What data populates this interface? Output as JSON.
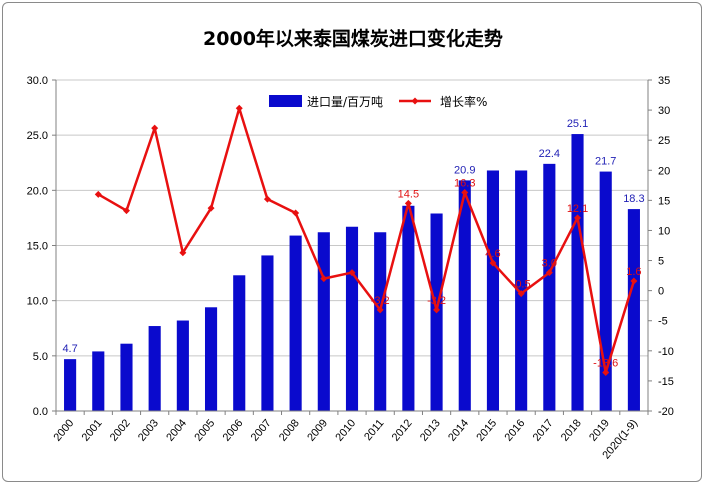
{
  "chart_data": {
    "type": "bar",
    "title": "2000年以来泰国煤炭进口变化走势",
    "categories": [
      "2000",
      "2001",
      "2002",
      "2003",
      "2004",
      "2005",
      "2006",
      "2007",
      "2008",
      "2009",
      "2010",
      "2011",
      "2012",
      "2013",
      "2014",
      "2015",
      "2016",
      "2017",
      "2018",
      "2019",
      "2020(1-9)"
    ],
    "series": [
      {
        "name": "进口量/百万吨",
        "type": "bar",
        "axis": "left",
        "color": "#0a0acd",
        "values": [
          4.7,
          5.4,
          6.1,
          7.7,
          8.2,
          9.4,
          12.3,
          14.1,
          15.9,
          16.2,
          16.7,
          16.2,
          18.6,
          17.9,
          20.9,
          21.8,
          21.8,
          22.4,
          25.1,
          21.7,
          18.3
        ],
        "labels": {
          "0": "4.7",
          "14": "20.9",
          "17": "22.4",
          "18": "25.1",
          "19": "21.7",
          "20": "18.3"
        }
      },
      {
        "name": "增长率%",
        "type": "line",
        "axis": "right",
        "color": "#e81010",
        "values": [
          null,
          16.0,
          13.3,
          27.0,
          6.3,
          13.7,
          30.3,
          15.2,
          12.9,
          2.0,
          3.0,
          -3.2,
          14.5,
          -3.2,
          16.3,
          4.6,
          -0.5,
          3.0,
          12.1,
          -13.6,
          1.6
        ],
        "labels": {
          "12": "14.5",
          "11": "-3.2",
          "14": "16.3",
          "13": "-3.2",
          "15": "4.6",
          "16": "-0.5",
          "17": "3.0",
          "18": "12.1",
          "19": "-13.6",
          "20": "1.6"
        }
      }
    ],
    "y_left": {
      "min": 0,
      "max": 30,
      "ticks": [
        "0.0",
        "5.0",
        "10.0",
        "15.0",
        "20.0",
        "25.0",
        "30.0"
      ]
    },
    "y_right": {
      "min": -20,
      "max": 35,
      "ticks": [
        "-20",
        "-15",
        "-10",
        "-5",
        "0",
        "5",
        "10",
        "15",
        "20",
        "25",
        "30",
        "35"
      ]
    },
    "grid": true,
    "legend_position": "top"
  }
}
